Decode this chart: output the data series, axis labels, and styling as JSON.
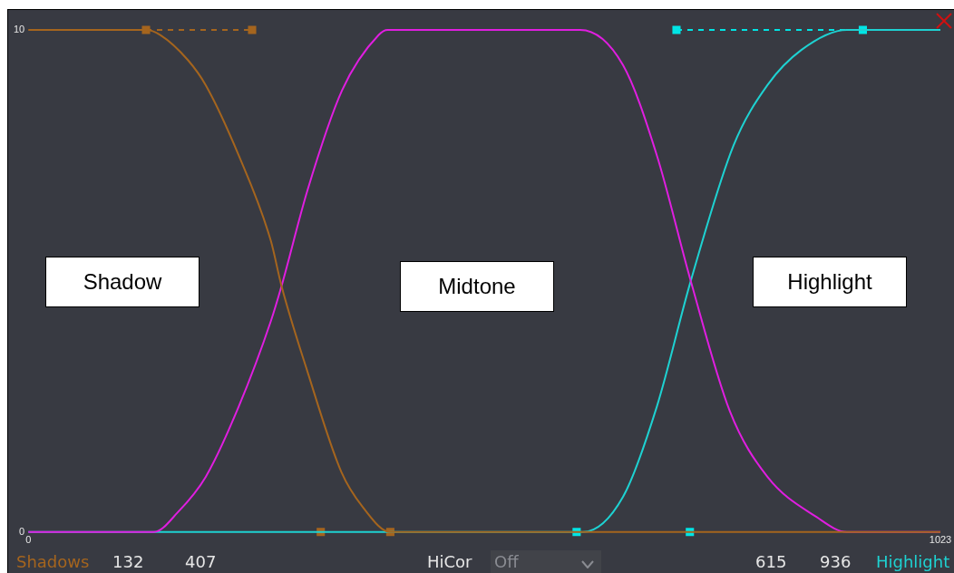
{
  "chart_data": {
    "type": "line",
    "xlim": [
      0,
      1023
    ],
    "xticks": [
      0,
      1023
    ],
    "ylim": [
      0,
      10
    ],
    "yticks": [
      0,
      10
    ],
    "grid": false,
    "legend": false,
    "series": [
      {
        "color": "#a5651e",
        "x": [
          0,
          132,
          148,
          179,
          199,
          236,
          272,
          284,
          313,
          351,
          375,
          406,
          1023
        ],
        "values": [
          10,
          10,
          9.9,
          9.4,
          8.9,
          7.5,
          5.8,
          4.9,
          3.2,
          1.2,
          0.5,
          0,
          0
        ]
      },
      {
        "color": "#e01ee0",
        "x": [
          0,
          141,
          168,
          199,
          236,
          272,
          284,
          313,
          352,
          393,
          403,
          619,
          667,
          705,
          743,
          787,
          829,
          884,
          918,
          1023
        ],
        "values": [
          0,
          0,
          0.4,
          1.1,
          2.5,
          4.2,
          4.9,
          6.8,
          8.8,
          9.9,
          10,
          10,
          9.3,
          7.5,
          5,
          2.4,
          1.1,
          0.3,
          0,
          0
        ]
      },
      {
        "color": "#1ed2d2",
        "x": [
          0,
          615,
          622,
          667,
          705,
          743,
          791,
          829,
          867,
          918,
          936,
          1023
        ],
        "values": [
          0,
          0,
          0,
          0.7,
          2.5,
          5,
          7.7,
          8.9,
          9.6,
          10,
          10,
          10
        ]
      },
      {
        "type": "line",
        "color": "#a5651e",
        "x": [
          132,
          251
        ],
        "values": [
          10,
          10
        ],
        "marker": "square",
        "line_style": "dashed"
      },
      {
        "type": "scatter",
        "color": "#a5651e",
        "x": [
          328,
          406
        ],
        "values": [
          0,
          0
        ],
        "marker": "square"
      },
      {
        "type": "scatter",
        "color": "#00e5e5",
        "x": [
          615,
          742
        ],
        "values": [
          0,
          0
        ],
        "marker": "square"
      },
      {
        "type": "line",
        "color": "#00e5e5",
        "x": [
          727,
          936
        ],
        "values": [
          10,
          10
        ],
        "marker": "square",
        "line_style": "dashed"
      }
    ],
    "annotations": [
      "Shadow",
      "Midtone",
      "Highlight",
      "Shadows",
      "132",
      "407",
      "HiCor",
      "Off",
      "615",
      "936",
      "Highlight"
    ]
  }
}
